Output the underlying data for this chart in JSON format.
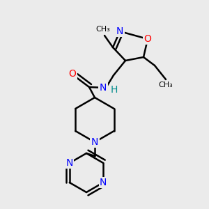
{
  "background_color": "#ebebeb",
  "bond_color": "#000000",
  "bond_width": 1.8,
  "atom_colors": {
    "N": "#0000ff",
    "O": "#ff0000",
    "C": "#000000",
    "H": "#008b8b"
  },
  "font_size_atom": 10,
  "font_size_group": 8.5
}
